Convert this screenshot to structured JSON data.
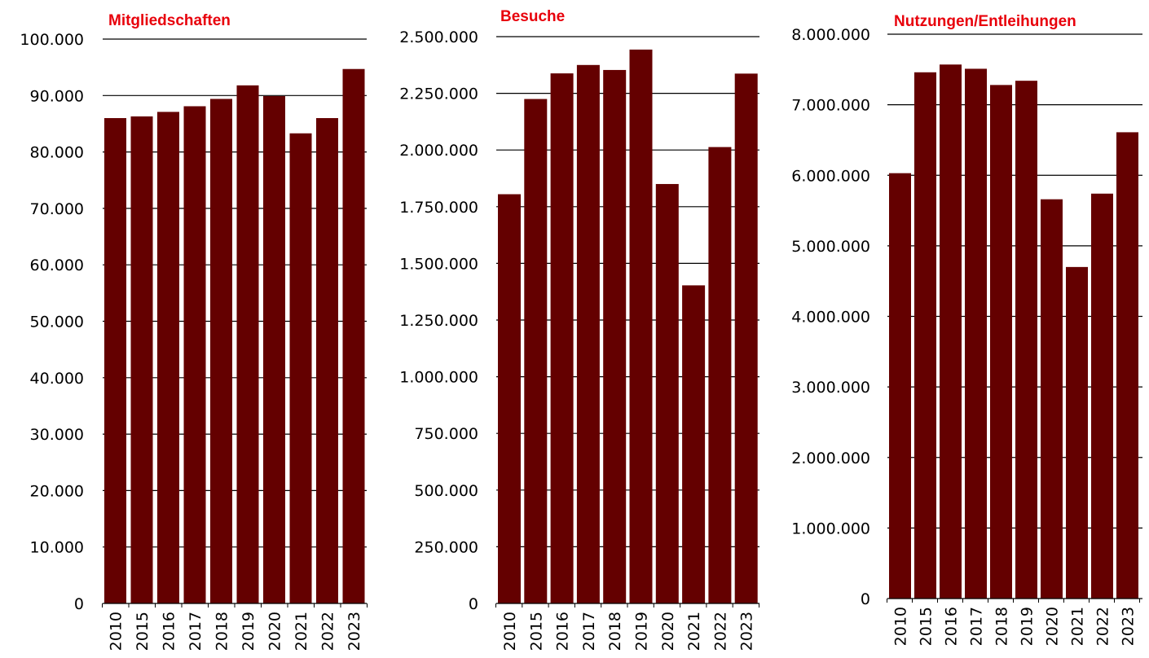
{
  "colors": {
    "bar": "#640000",
    "title": "#e8000b",
    "axis": "#000000",
    "text": "#000000"
  },
  "chart_data": [
    {
      "type": "bar",
      "title": "Mitgliedschaften",
      "categories": [
        "2010",
        "2015",
        "2016",
        "2017",
        "2018",
        "2019",
        "2020",
        "2021",
        "2022",
        "2023"
      ],
      "values": [
        86000,
        86300,
        87100,
        88100,
        89400,
        91800,
        89900,
        83300,
        86000,
        94700
      ],
      "ylim": [
        0,
        100000
      ],
      "yticks": [
        0,
        10000,
        20000,
        30000,
        40000,
        50000,
        60000,
        70000,
        80000,
        90000,
        100000
      ],
      "ytick_labels": [
        "0",
        "10.000",
        "20.000",
        "30.000",
        "40.000",
        "50.000",
        "60.000",
        "70.000",
        "80.000",
        "90.000",
        "100.000"
      ],
      "xlabel": "",
      "ylabel": "",
      "grid": true
    },
    {
      "type": "bar",
      "title": "Besuche",
      "categories": [
        "2010",
        "2015",
        "2016",
        "2017",
        "2018",
        "2019",
        "2020",
        "2021",
        "2022",
        "2023"
      ],
      "values": [
        1805000,
        2225000,
        2338000,
        2375000,
        2353000,
        2443000,
        1850000,
        1403000,
        2013000,
        2337000
      ],
      "ylim": [
        0,
        2500000
      ],
      "yticks": [
        0,
        250000,
        500000,
        750000,
        1000000,
        1250000,
        1500000,
        1750000,
        2000000,
        2250000,
        2500000
      ],
      "ytick_labels": [
        "0",
        "250.000",
        "500.000",
        "750.000",
        "1.000.000",
        "1.250.000",
        "1.500.000",
        "1.750.000",
        "2.000.000",
        "2.250.000",
        "2.500.000"
      ],
      "xlabel": "",
      "ylabel": "",
      "grid": true
    },
    {
      "type": "bar",
      "title": "Nutzungen/Entleihungen",
      "categories": [
        "2010",
        "2015",
        "2016",
        "2017",
        "2018",
        "2019",
        "2020",
        "2021",
        "2022",
        "2023"
      ],
      "values": [
        6030000,
        7460000,
        7570000,
        7510000,
        7280000,
        7340000,
        5660000,
        4700000,
        5740000,
        6610000
      ],
      "ylim": [
        0,
        8000000
      ],
      "yticks": [
        0,
        1000000,
        2000000,
        3000000,
        4000000,
        5000000,
        6000000,
        7000000,
        8000000
      ],
      "ytick_labels": [
        "0",
        "1.000.000",
        "2.000.000",
        "3.000.000",
        "4.000.000",
        "5.000.000",
        "6.000.000",
        "7.000.000",
        "8.000.000"
      ],
      "xlabel": "",
      "ylabel": "",
      "grid": true
    }
  ]
}
